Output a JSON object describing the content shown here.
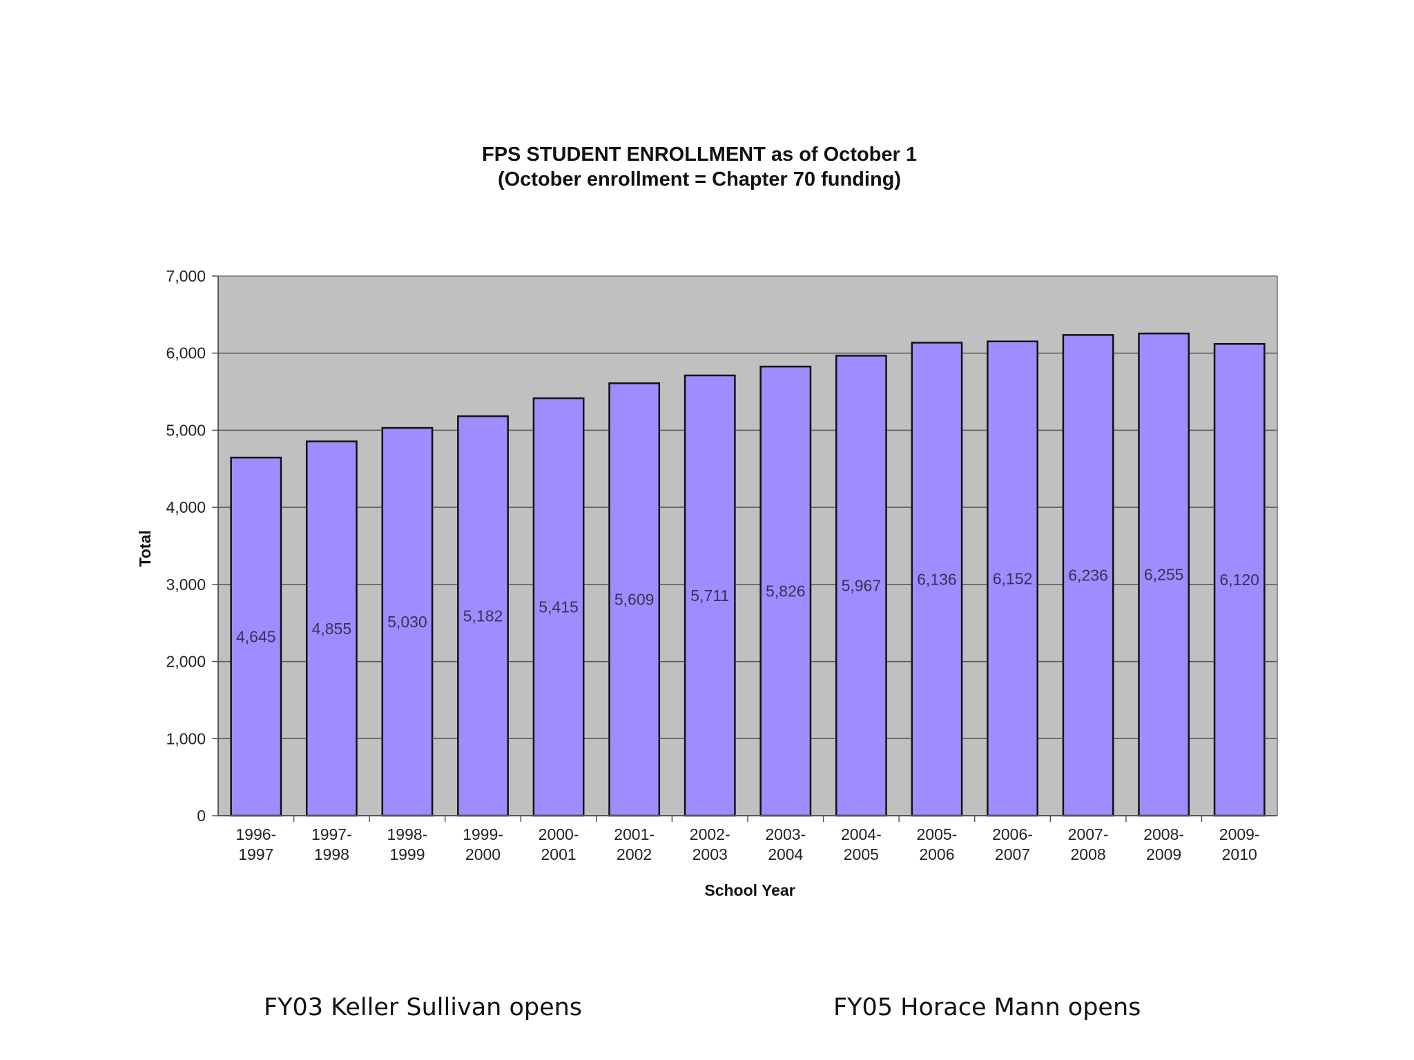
{
  "chart_data": {
    "type": "bar",
    "title": "FPS STUDENT ENROLLMENT as of October 1",
    "subtitle": "(October enrollment = Chapter 70 funding)",
    "xlabel": "School Year",
    "ylabel": "Total",
    "ylim": [
      0,
      7000
    ],
    "yticks": [
      0,
      1000,
      2000,
      3000,
      4000,
      5000,
      6000,
      7000
    ],
    "ytick_labels": [
      "0",
      "1,000",
      "2,000",
      "3,000",
      "4,000",
      "5,000",
      "6,000",
      "7,000"
    ],
    "grid": true,
    "categories": [
      [
        "1996-",
        "1997"
      ],
      [
        "1997-",
        "1998"
      ],
      [
        "1998-",
        "1999"
      ],
      [
        "1999-",
        "2000"
      ],
      [
        "2000-",
        "2001"
      ],
      [
        "2001-",
        "2002"
      ],
      [
        "2002-",
        "2003"
      ],
      [
        "2003-",
        "2004"
      ],
      [
        "2004-",
        "2005"
      ],
      [
        "2005-",
        "2006"
      ],
      [
        "2006-",
        "2007"
      ],
      [
        "2007-",
        "2008"
      ],
      [
        "2008-",
        "2009"
      ],
      [
        "2009-",
        "2010"
      ]
    ],
    "values": [
      4645,
      4855,
      5030,
      5182,
      5415,
      5609,
      5711,
      5826,
      5967,
      6136,
      6152,
      6236,
      6255,
      6120
    ],
    "value_labels": [
      "4,645",
      "4,855",
      "5,030",
      "5,182",
      "5,415",
      "5,609",
      "5,711",
      "5,826",
      "5,967",
      "6,136",
      "6,152",
      "6,236",
      "6,255",
      "6,120"
    ],
    "colors": {
      "bar": "#a18cff",
      "plot_bg": "#c0c0c0",
      "grid": "#555555",
      "bar_stroke": "#111111"
    }
  },
  "captions": {
    "left": "FY03 Keller Sullivan opens",
    "right": "FY05 Horace Mann opens"
  }
}
